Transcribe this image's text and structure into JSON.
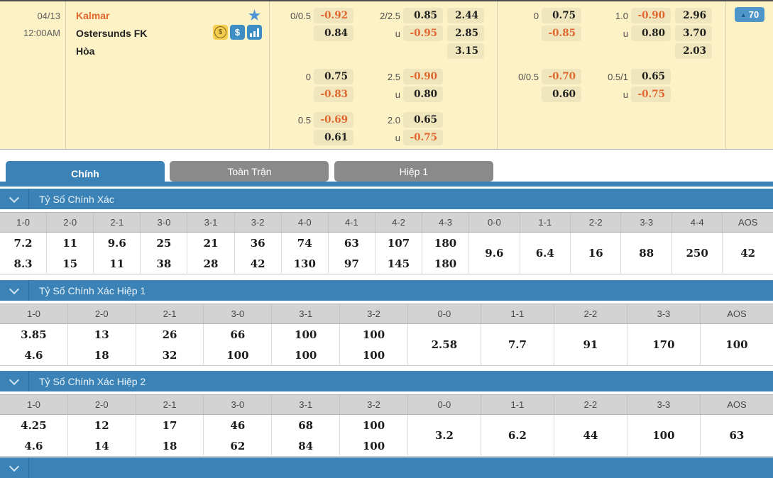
{
  "match": {
    "date": "04/13",
    "time": "12:00AM",
    "home_team": "Kalmar",
    "away_team": "Ostersunds FK",
    "draw_label": "Hòa",
    "arrow": "▲",
    "bookmaker_count": "70",
    "dollar_glyph": "$"
  },
  "odds": {
    "g1": {
      "b1": {
        "l1": {
          "h_lbl": "0/0.5",
          "h": "-0.92",
          "o_lbl": "2/2.5",
          "o": "0.85",
          "x": "2.44"
        },
        "l2": {
          "h_lbl": "",
          "h": "0.84",
          "o_lbl": "u",
          "o": "-0.95",
          "x": "2.85"
        },
        "l3": {
          "h_lbl": "",
          "h": "",
          "o_lbl": "",
          "o": "",
          "x": "3.15"
        }
      },
      "b2": {
        "l1": {
          "h_lbl": "0",
          "h": "0.75",
          "o_lbl": "2.5",
          "o": "-0.90",
          "x": ""
        },
        "l2": {
          "h_lbl": "",
          "h": "-0.83",
          "o_lbl": "u",
          "o": "0.80",
          "x": ""
        }
      },
      "b3": {
        "l1": {
          "h_lbl": "0.5",
          "h": "-0.69",
          "o_lbl": "2.0",
          "o": "0.65",
          "x": ""
        },
        "l2": {
          "h_lbl": "",
          "h": "0.61",
          "o_lbl": "u",
          "o": "-0.75",
          "x": ""
        }
      }
    },
    "g2": {
      "b1": {
        "l1": {
          "h_lbl": "0",
          "h": "0.75",
          "o_lbl": "1.0",
          "o": "-0.90",
          "x": "2.96"
        },
        "l2": {
          "h_lbl": "",
          "h": "-0.85",
          "o_lbl": "u",
          "o": "0.80",
          "x": "3.70"
        },
        "l3": {
          "h_lbl": "",
          "h": "",
          "o_lbl": "",
          "o": "",
          "x": "2.03"
        }
      },
      "b2": {
        "l1": {
          "h_lbl": "0/0.5",
          "h": "-0.70",
          "o_lbl": "0.5/1",
          "o": "0.65",
          "x": ""
        },
        "l2": {
          "h_lbl": "",
          "h": "0.60",
          "o_lbl": "u",
          "o": "-0.75",
          "x": ""
        }
      }
    }
  },
  "tabs": [
    {
      "label": "Chính"
    },
    {
      "label": "Toàn Trận"
    },
    {
      "label": "Hiệp 1"
    }
  ],
  "score_tables": [
    {
      "title": "Tỷ Số Chính Xác",
      "pair_headers": [
        "1-0",
        "2-0",
        "2-1",
        "3-0",
        "3-1",
        "3-2",
        "4-0",
        "4-1",
        "4-2",
        "4-3"
      ],
      "pair_rows": [
        [
          "7.2",
          "11",
          "9.6",
          "25",
          "21",
          "36",
          "74",
          "63",
          "107",
          "180"
        ],
        [
          "8.3",
          "15",
          "11",
          "38",
          "28",
          "42",
          "130",
          "97",
          "145",
          "180"
        ]
      ],
      "single_headers": [
        "0-0",
        "1-1",
        "2-2",
        "3-3",
        "4-4",
        "AOS"
      ],
      "single_values": [
        "9.6",
        "6.4",
        "16",
        "88",
        "250",
        "42"
      ]
    },
    {
      "title": "Tỷ Số Chính Xác Hiệp 1",
      "pair_headers": [
        "1-0",
        "2-0",
        "2-1",
        "3-0",
        "3-1",
        "3-2"
      ],
      "pair_rows": [
        [
          "3.85",
          "13",
          "26",
          "66",
          "100",
          "100"
        ],
        [
          "4.6",
          "18",
          "32",
          "100",
          "100",
          "100"
        ]
      ],
      "single_headers": [
        "0-0",
        "1-1",
        "2-2",
        "3-3",
        "AOS"
      ],
      "single_values": [
        "2.58",
        "7.7",
        "91",
        "170",
        "100"
      ]
    },
    {
      "title": "Tỷ Số Chính Xác Hiệp 2",
      "pair_headers": [
        "1-0",
        "2-0",
        "2-1",
        "3-0",
        "3-1",
        "3-2"
      ],
      "pair_rows": [
        [
          "4.25",
          "12",
          "17",
          "46",
          "68",
          "100"
        ],
        [
          "4.6",
          "14",
          "18",
          "62",
          "84",
          "100"
        ]
      ],
      "single_headers": [
        "0-0",
        "1-1",
        "2-2",
        "3-3",
        "AOS"
      ],
      "single_values": [
        "3.2",
        "6.2",
        "44",
        "100",
        "63"
      ]
    }
  ]
}
